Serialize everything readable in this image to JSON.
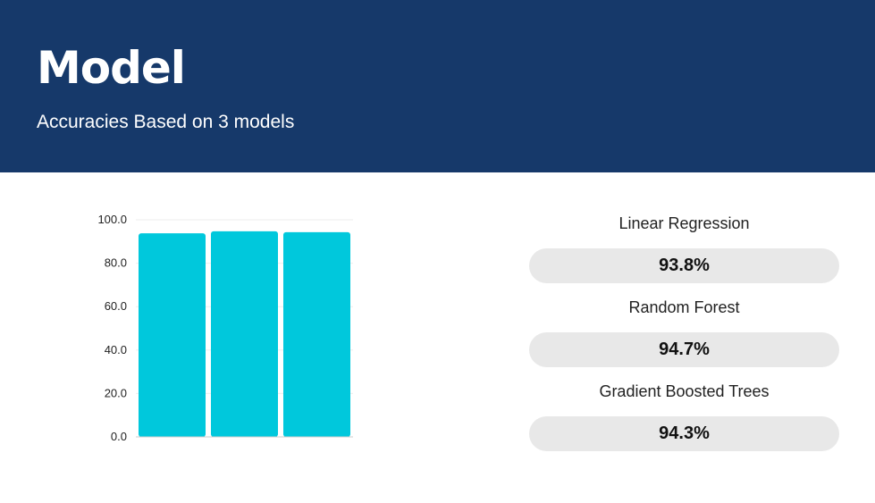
{
  "header": {
    "title": "Model",
    "subtitle": "Accuracies Based on 3 models",
    "background_color": "#16396a"
  },
  "models": [
    {
      "name": "Linear Regression",
      "value_text": "93.8%"
    },
    {
      "name": "Random Forest",
      "value_text": "94.7%"
    },
    {
      "name": "Gradient Boosted Trees",
      "value_text": "94.3%"
    }
  ],
  "chart_data": {
    "type": "bar",
    "categories": [
      "Linear Regression",
      "Random Forest",
      "Gradient Boosted Trees"
    ],
    "values": [
      93.8,
      94.7,
      94.3
    ],
    "ylim": [
      0,
      100
    ],
    "yticks": [
      "0.0",
      "20.0",
      "40.0",
      "60.0",
      "80.0",
      "100.0"
    ],
    "bar_color": "#00c8dc",
    "grid": true,
    "legend": "none"
  }
}
